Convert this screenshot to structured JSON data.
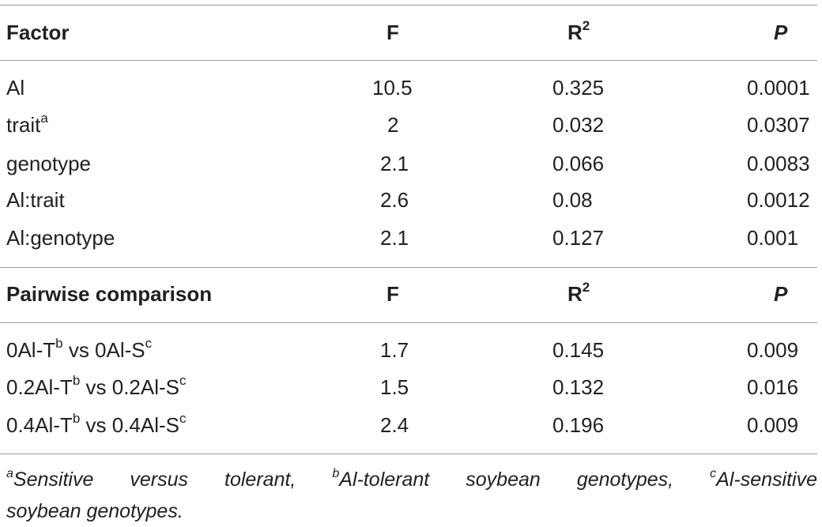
{
  "header1": {
    "factor": "Factor",
    "f": "F",
    "r_base": "R",
    "r_sup": "2",
    "p": "P"
  },
  "rows1": [
    {
      "label": "Al",
      "label_sup": "",
      "f": "10.5",
      "r2": "0.325",
      "p": "0.0001"
    },
    {
      "label": "trait",
      "label_sup": "a",
      "f": "2",
      "r2": "0.032",
      "p": "0.0307"
    },
    {
      "label": "genotype",
      "label_sup": "",
      "f": "2.1",
      "r2": "0.066",
      "p": "0.0083"
    },
    {
      "label": "Al:trait",
      "label_sup": "",
      "f": "2.6",
      "r2": "0.08",
      "p": "0.0012"
    },
    {
      "label": "Al:genotype",
      "label_sup": "",
      "f": "2.1",
      "r2": "0.127",
      "p": "0.001"
    }
  ],
  "header2": {
    "factor": "Pairwise comparison",
    "f": "F",
    "r_base": "R",
    "r_sup": "2",
    "p": "P"
  },
  "rows2": [
    {
      "a": "0Al-T",
      "a_sup": "b",
      "mid": " vs 0Al-S",
      "b_sup": "c",
      "f": "1.7",
      "r2": "0.145",
      "p": "0.009"
    },
    {
      "a": "0.2Al-T",
      "a_sup": "b",
      "mid": " vs 0.2Al-S",
      "b_sup": "c",
      "f": "1.5",
      "r2": "0.132",
      "p": "0.016"
    },
    {
      "a": "0.4Al-T",
      "a_sup": "b",
      "mid": " vs 0.4Al-S",
      "b_sup": "c",
      "f": "2.4",
      "r2": "0.196",
      "p": "0.009"
    }
  ],
  "footnote": {
    "sup_a": "a",
    "text_a": "Sensitive",
    "w2": "versus",
    "w3": "tolerant,",
    "sup_b": "b",
    "text_b": "Al-tolerant",
    "w5": "soybean",
    "w6": "genotypes,",
    "sup_c": "c",
    "text_c": "Al-sensitive",
    "line2": "soybean genotypes."
  }
}
